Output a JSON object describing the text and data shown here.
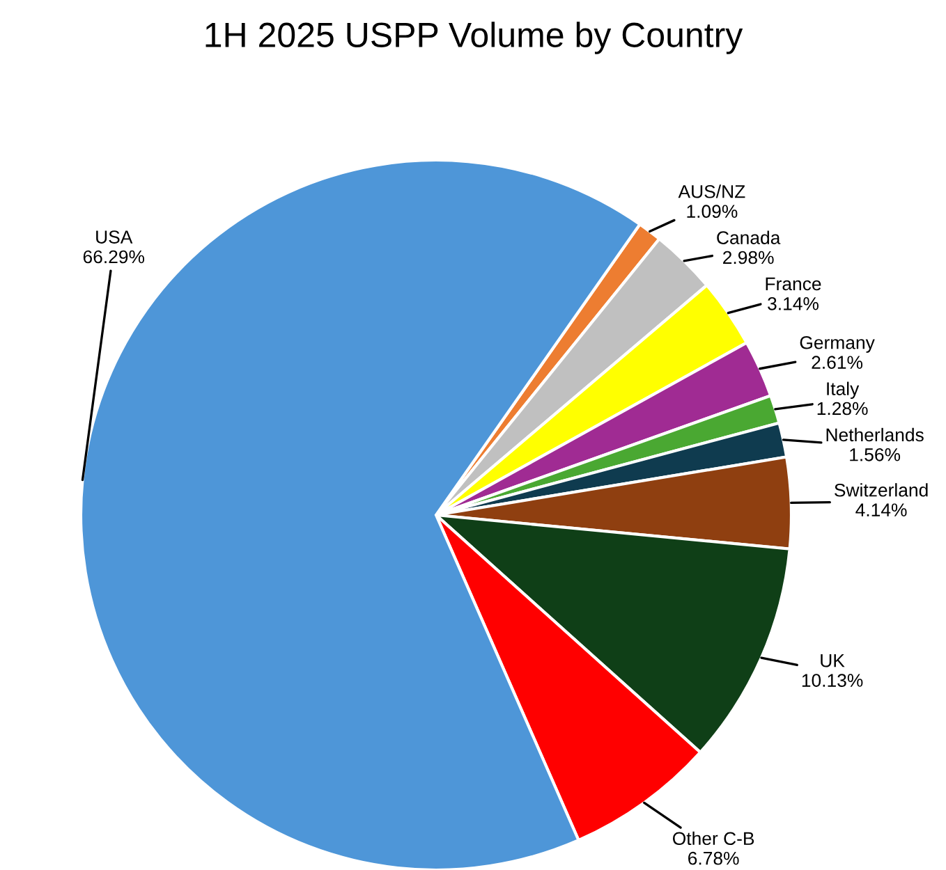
{
  "chart_data": {
    "type": "pie",
    "title": "1H 2025 USPP Volume by Country",
    "categories": [
      "AUS/NZ",
      "Canada",
      "France",
      "Germany",
      "Italy",
      "Netherlands",
      "Switzerland",
      "UK",
      "Other C-B",
      "USA"
    ],
    "values": [
      1.09,
      2.98,
      3.14,
      2.61,
      1.28,
      1.56,
      4.14,
      10.13,
      6.78,
      66.29
    ],
    "value_labels": [
      "1.09%",
      "2.98%",
      "3.14%",
      "2.61%",
      "1.28%",
      "1.56%",
      "4.14%",
      "10.13%",
      "6.78%",
      "66.29%"
    ],
    "colors": [
      "#ed7d31",
      "#c0c0c0",
      "#ffff00",
      "#a02b93",
      "#4aa832",
      "#0f3b4f",
      "#8f3f10",
      "#0f3f17",
      "#ff0000",
      "#4e96d8"
    ],
    "legend": false
  }
}
